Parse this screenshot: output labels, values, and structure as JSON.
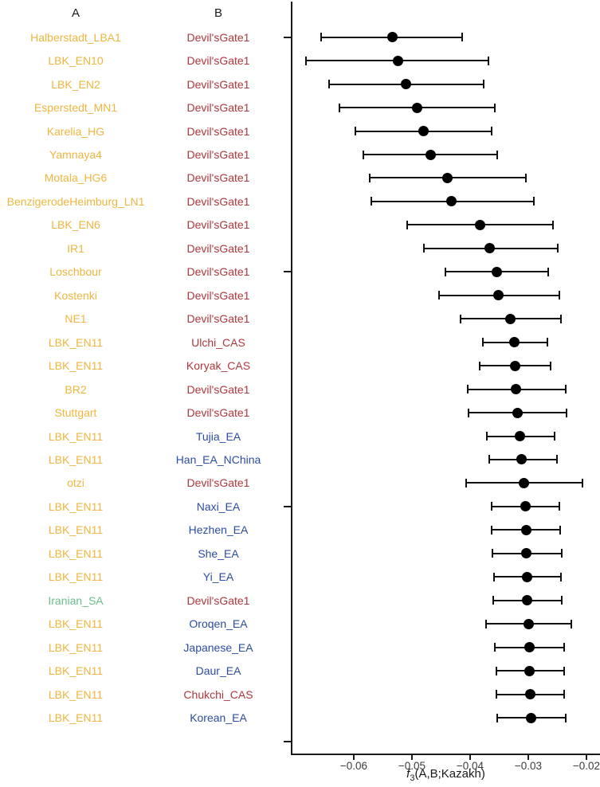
{
  "colors": {
    "yellow": "#EFB63F",
    "green": "#6CBE8C",
    "red": "#AF373C",
    "blue": "#2C4CA0",
    "point": "#000000",
    "axis": "#1a1a1a",
    "tick_text": "#3c3c3c"
  },
  "chart_data": {
    "type": "scatter",
    "subtype": "horizontal-forest-plot-with-error-bars",
    "title": "",
    "col_a_header": "A",
    "col_b_header": "B",
    "xlabel_f": "f",
    "xlabel_sub": "3",
    "xlabel_rest": "(A,B;Kazakh)",
    "xlabel_plain": "f3(A,B;Kazakh)",
    "xlim": [
      -0.0707,
      -0.0177
    ],
    "x_ticks": [
      -0.06,
      -0.05,
      -0.04,
      -0.03,
      -0.02
    ],
    "x_tick_labels": [
      "−0.06",
      "−0.05",
      "−0.04",
      "−0.03",
      "−0.02"
    ],
    "y_axis_tick_rows": [
      0,
      10,
      20,
      30
    ],
    "grid": false,
    "legend": false,
    "rows": [
      {
        "a": "Halberstadt_LBA1",
        "a_color": "yellow",
        "b": "Devil'sGate1",
        "b_color": "red",
        "f3": -0.0533,
        "ci_low": -0.0656,
        "ci_high": -0.0414
      },
      {
        "a": "LBK_EN10",
        "a_color": "yellow",
        "b": "Devil'sGate1",
        "b_color": "red",
        "f3": -0.0524,
        "ci_low": -0.0682,
        "ci_high": -0.0368
      },
      {
        "a": "LBK_EN2",
        "a_color": "yellow",
        "b": "Devil'sGate1",
        "b_color": "red",
        "f3": -0.051,
        "ci_low": -0.0642,
        "ci_high": -0.0377
      },
      {
        "a": "Esperstedt_MN1",
        "a_color": "yellow",
        "b": "Devil'sGate1",
        "b_color": "red",
        "f3": -0.0491,
        "ci_low": -0.0624,
        "ci_high": -0.0358
      },
      {
        "a": "Karelia_HG",
        "a_color": "yellow",
        "b": "Devil'sGate1",
        "b_color": "red",
        "f3": -0.048,
        "ci_low": -0.0597,
        "ci_high": -0.0363
      },
      {
        "a": "Yamnaya4",
        "a_color": "yellow",
        "b": "Devil'sGate1",
        "b_color": "red",
        "f3": -0.0468,
        "ci_low": -0.0584,
        "ci_high": -0.0353
      },
      {
        "a": "Motala_HG6",
        "a_color": "yellow",
        "b": "Devil'sGate1",
        "b_color": "red",
        "f3": -0.0439,
        "ci_low": -0.0573,
        "ci_high": -0.0304
      },
      {
        "a": "BenzigerodeHeimburg_LN1",
        "a_color": "yellow",
        "b": "Devil'sGate1",
        "b_color": "red",
        "f3": -0.0432,
        "ci_low": -0.057,
        "ci_high": -0.0291
      },
      {
        "a": "LBK_EN6",
        "a_color": "yellow",
        "b": "Devil'sGate1",
        "b_color": "red",
        "f3": -0.0383,
        "ci_low": -0.0508,
        "ci_high": -0.0257
      },
      {
        "a": "IR1",
        "a_color": "yellow",
        "b": "Devil'sGate1",
        "b_color": "red",
        "f3": -0.0366,
        "ci_low": -0.0479,
        "ci_high": -0.025
      },
      {
        "a": "Loschbour",
        "a_color": "yellow",
        "b": "Devil'sGate1",
        "b_color": "red",
        "f3": -0.0354,
        "ci_low": -0.0442,
        "ci_high": -0.0266
      },
      {
        "a": "Kostenki",
        "a_color": "yellow",
        "b": "Devil'sGate1",
        "b_color": "red",
        "f3": -0.0351,
        "ci_low": -0.0453,
        "ci_high": -0.0247
      },
      {
        "a": "NE1",
        "a_color": "yellow",
        "b": "Devil'sGate1",
        "b_color": "red",
        "f3": -0.0331,
        "ci_low": -0.0416,
        "ci_high": -0.0244
      },
      {
        "a": "LBK_EN11",
        "a_color": "yellow",
        "b": "Ulchi_CAS",
        "b_color": "red",
        "f3": -0.0324,
        "ci_low": -0.0378,
        "ci_high": -0.0267
      },
      {
        "a": "LBK_EN11",
        "a_color": "yellow",
        "b": "Koryak_CAS",
        "b_color": "red",
        "f3": -0.0323,
        "ci_low": -0.0383,
        "ci_high": -0.0262
      },
      {
        "a": "BR2",
        "a_color": "yellow",
        "b": "Devil'sGate1",
        "b_color": "red",
        "f3": -0.0321,
        "ci_low": -0.0404,
        "ci_high": -0.0236
      },
      {
        "a": "Stuttgart",
        "a_color": "yellow",
        "b": "Devil'sGate1",
        "b_color": "red",
        "f3": -0.0319,
        "ci_low": -0.0403,
        "ci_high": -0.0234
      },
      {
        "a": "LBK_EN11",
        "a_color": "yellow",
        "b": "Tujia_EA",
        "b_color": "blue",
        "f3": -0.0314,
        "ci_low": -0.0371,
        "ci_high": -0.0255
      },
      {
        "a": "LBK_EN11",
        "a_color": "yellow",
        "b": "Han_EA_NChina",
        "b_color": "blue",
        "f3": -0.0311,
        "ci_low": -0.0367,
        "ci_high": -0.0251
      },
      {
        "a": "otzi",
        "a_color": "yellow",
        "b": "Devil'sGate1",
        "b_color": "red",
        "f3": -0.0308,
        "ci_low": -0.0407,
        "ci_high": -0.0207
      },
      {
        "a": "LBK_EN11",
        "a_color": "yellow",
        "b": "Naxi_EA",
        "b_color": "blue",
        "f3": -0.0305,
        "ci_low": -0.0363,
        "ci_high": -0.0246
      },
      {
        "a": "LBK_EN11",
        "a_color": "yellow",
        "b": "Hezhen_EA",
        "b_color": "blue",
        "f3": -0.0304,
        "ci_low": -0.0363,
        "ci_high": -0.0245
      },
      {
        "a": "LBK_EN11",
        "a_color": "yellow",
        "b": "She_EA",
        "b_color": "blue",
        "f3": -0.0303,
        "ci_low": -0.0362,
        "ci_high": -0.0243
      },
      {
        "a": "LBK_EN11",
        "a_color": "yellow",
        "b": "Yi_EA",
        "b_color": "blue",
        "f3": -0.0302,
        "ci_low": -0.0359,
        "ci_high": -0.0244
      },
      {
        "a": "Iranian_SA",
        "a_color": "green",
        "b": "Devil'sGate1",
        "b_color": "red",
        "f3": -0.0302,
        "ci_low": -0.036,
        "ci_high": -0.0243
      },
      {
        "a": "LBK_EN11",
        "a_color": "yellow",
        "b": "Oroqen_EA",
        "b_color": "blue",
        "f3": -0.03,
        "ci_low": -0.0372,
        "ci_high": -0.0226
      },
      {
        "a": "LBK_EN11",
        "a_color": "yellow",
        "b": "Japanese_EA",
        "b_color": "blue",
        "f3": -0.0298,
        "ci_low": -0.0357,
        "ci_high": -0.0239
      },
      {
        "a": "LBK_EN11",
        "a_color": "yellow",
        "b": "Daur_EA",
        "b_color": "blue",
        "f3": -0.0298,
        "ci_low": -0.0355,
        "ci_high": -0.0238
      },
      {
        "a": "LBK_EN11",
        "a_color": "yellow",
        "b": "Chukchi_CAS",
        "b_color": "red",
        "f3": -0.0297,
        "ci_low": -0.0355,
        "ci_high": -0.0238
      },
      {
        "a": "LBK_EN11",
        "a_color": "yellow",
        "b": "Korean_EA",
        "b_color": "blue",
        "f3": -0.0295,
        "ci_low": -0.0353,
        "ci_high": -0.0236
      }
    ]
  }
}
